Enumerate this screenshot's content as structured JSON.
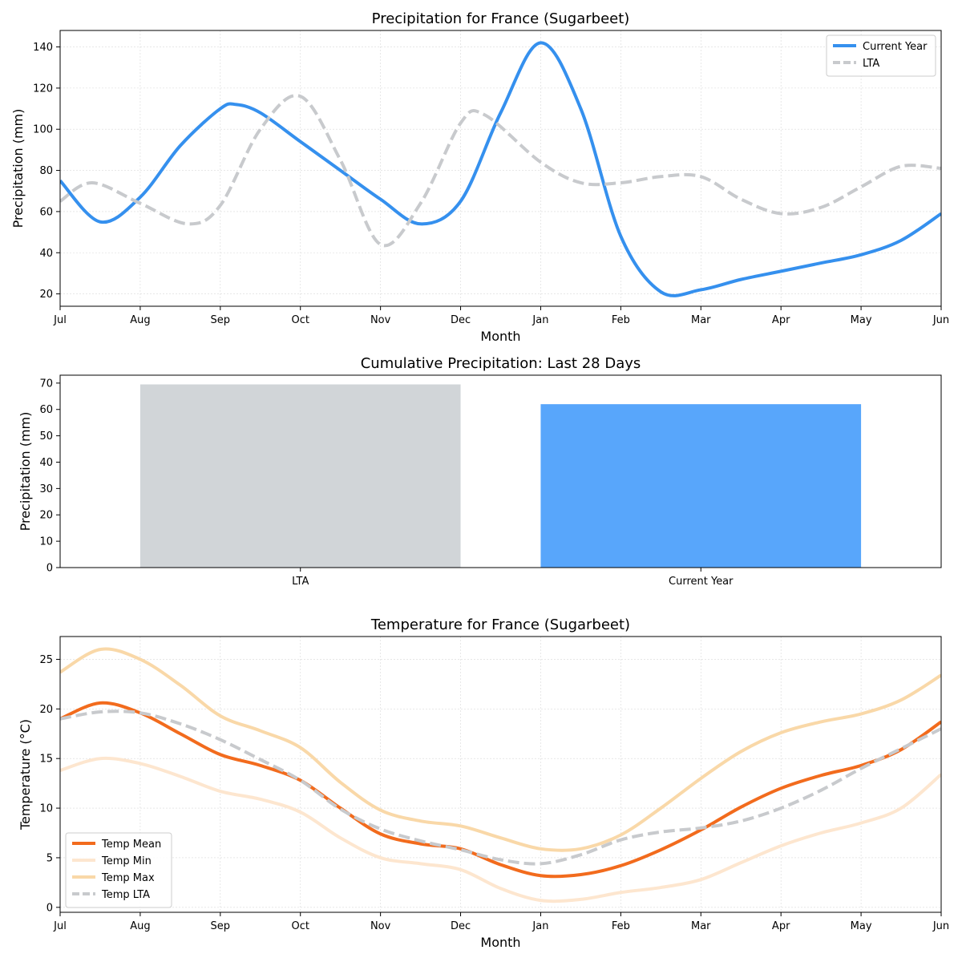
{
  "colors": {
    "current": "#3590ee",
    "lta": "#c8cacd",
    "bar_lta": "#d1d5d8",
    "bar_current": "#58a6fb",
    "temp_mean": "#f26b1d",
    "temp_min": "#fde6cf",
    "temp_max": "#f9d8a8",
    "temp_lta": "#c8cacd"
  },
  "chart_data": [
    {
      "type": "line",
      "title": "Precipitation for France (Sugarbeet)",
      "xlabel": "Month",
      "ylabel": "Precipitation (mm)",
      "categories": [
        "Jul",
        "Aug",
        "Sep",
        "Oct",
        "Nov",
        "Dec",
        "Jan",
        "Feb",
        "Mar",
        "Apr",
        "May",
        "Jun"
      ],
      "ylim": [
        14,
        148
      ],
      "yticks": [
        20,
        40,
        60,
        80,
        100,
        120,
        140
      ],
      "grid": true,
      "legend_position": "top-right",
      "series": [
        {
          "name": "Current Year",
          "style": "solid",
          "x": [
            0,
            0.5,
            1,
            1.5,
            2,
            2.2,
            2.5,
            3,
            3.5,
            4,
            4.5,
            5,
            5.5,
            6,
            6.5,
            7,
            7.5,
            8,
            8.5,
            9,
            9.5,
            10,
            10.5,
            11
          ],
          "values": [
            75,
            55,
            67,
            92,
            110,
            112,
            108,
            94,
            80,
            66,
            54,
            65,
            108,
            142,
            110,
            48,
            21,
            22,
            27,
            31,
            35,
            39,
            46,
            59
          ]
        },
        {
          "name": "LTA",
          "style": "dashed",
          "x": [
            0,
            0.4,
            1,
            1.6,
            2,
            2.5,
            3,
            3.5,
            4,
            4.5,
            5,
            5.3,
            6,
            6.5,
            7,
            7.5,
            8,
            8.5,
            9,
            9.5,
            10,
            10.5,
            11
          ],
          "values": [
            65,
            74,
            64,
            54,
            63,
            100,
            116,
            85,
            44,
            64,
            103,
            107,
            84,
            74,
            74,
            77,
            77,
            66,
            59,
            62,
            72,
            82,
            81
          ]
        }
      ]
    },
    {
      "type": "bar",
      "title": "Cumulative Precipitation: Last 28 Days",
      "xlabel": "",
      "ylabel": "Precipitation (mm)",
      "categories": [
        "LTA",
        "Current Year"
      ],
      "values": [
        69.5,
        62
      ],
      "ylim": [
        0,
        73
      ],
      "yticks": [
        0,
        10,
        20,
        30,
        40,
        50,
        60,
        70
      ]
    },
    {
      "type": "line",
      "title": "Temperature for France (Sugarbeet)",
      "xlabel": "Month",
      "ylabel": "Temperature (°C)",
      "categories": [
        "Jul",
        "Aug",
        "Sep",
        "Oct",
        "Nov",
        "Dec",
        "Jan",
        "Feb",
        "Mar",
        "Apr",
        "May",
        "Jun"
      ],
      "ylim": [
        -0.5,
        27.3
      ],
      "yticks": [
        0,
        5,
        10,
        15,
        20,
        25
      ],
      "grid": true,
      "legend_position": "lower-left",
      "series": [
        {
          "name": "Temp Mean",
          "style": "solid",
          "x": [
            0,
            0.5,
            1,
            1.5,
            2,
            2.5,
            3,
            3.5,
            4,
            4.5,
            5,
            5.5,
            6,
            6.5,
            7,
            7.5,
            8,
            8.5,
            9,
            9.5,
            10,
            10.5,
            11
          ],
          "values": [
            19,
            20.6,
            19.6,
            17.5,
            15.4,
            14.3,
            12.8,
            10,
            7.4,
            6.4,
            5.9,
            4.3,
            3.2,
            3.3,
            4.2,
            5.8,
            7.8,
            10.1,
            12,
            13.3,
            14.3,
            15.9,
            18.7
          ]
        },
        {
          "name": "Temp Min",
          "style": "solid",
          "x": [
            0,
            0.5,
            1,
            1.5,
            2,
            2.5,
            3,
            3.5,
            4,
            4.5,
            5,
            5.5,
            6,
            6.5,
            7,
            7.5,
            8,
            8.5,
            9,
            9.5,
            10,
            10.5,
            11
          ],
          "values": [
            13.8,
            15,
            14.5,
            13.2,
            11.7,
            10.9,
            9.6,
            7,
            5,
            4.4,
            3.8,
            1.9,
            0.7,
            0.8,
            1.5,
            2,
            2.8,
            4.5,
            6.2,
            7.5,
            8.5,
            10,
            13.4
          ]
        },
        {
          "name": "Temp Max",
          "style": "solid",
          "x": [
            0,
            0.5,
            1,
            1.5,
            2,
            2.5,
            3,
            3.5,
            4,
            4.5,
            5,
            5.5,
            6,
            6.5,
            7,
            7.5,
            8,
            8.5,
            9,
            9.5,
            10,
            10.5,
            11
          ],
          "values": [
            23.7,
            26,
            25,
            22.4,
            19.3,
            17.8,
            16.1,
            12.6,
            9.8,
            8.7,
            8.2,
            7,
            5.9,
            5.9,
            7.3,
            10,
            13,
            15.7,
            17.6,
            18.7,
            19.5,
            20.9,
            23.4
          ]
        },
        {
          "name": "Temp LTA",
          "style": "dashed",
          "x": [
            0,
            0.5,
            1,
            1.5,
            2,
            2.5,
            3,
            3.5,
            4,
            4.5,
            5,
            5.5,
            6,
            6.5,
            7,
            7.5,
            8,
            8.5,
            9,
            9.5,
            10,
            10.5,
            11
          ],
          "values": [
            19,
            19.7,
            19.6,
            18.5,
            16.9,
            14.9,
            12.8,
            9.9,
            7.9,
            6.7,
            5.8,
            4.8,
            4.4,
            5.3,
            6.8,
            7.6,
            8,
            8.7,
            10,
            11.8,
            14,
            16,
            18
          ]
        }
      ]
    }
  ]
}
